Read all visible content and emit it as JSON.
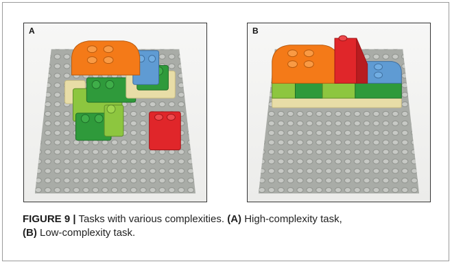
{
  "panel_a": {
    "label": "A"
  },
  "panel_b": {
    "label": "B"
  },
  "caption": {
    "figure_label": "FIGURE 9 |",
    "text1": "Tasks with various complexities.",
    "ref_a": "(A)",
    "text2": "High-complexity task,",
    "ref_b": "(B)",
    "text3": "Low-complexity task."
  },
  "colors": {
    "baseplate": "#a9aca7",
    "orange": "#f47a18",
    "blue": "#5f9bd3",
    "green": "#2f9a3b",
    "lime": "#8dc63f",
    "red": "#e0262a",
    "beige": "#e8dda7"
  }
}
